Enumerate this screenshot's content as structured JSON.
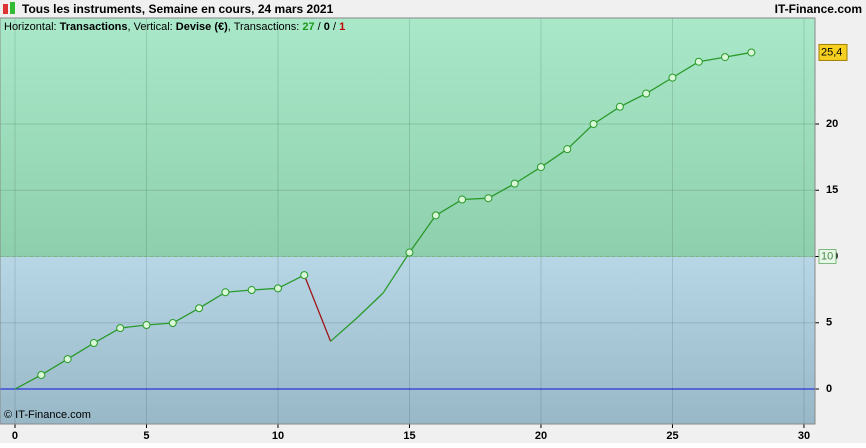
{
  "header": {
    "title": "Tous les instruments, Semaine en cours, 24 mars 2021",
    "brand": "IT-Finance.com"
  },
  "chart_data": {
    "type": "line",
    "info": [
      {
        "text": "Horizontal: "
      },
      {
        "text": "Transactions",
        "bold": true
      },
      {
        "text": ", Vertical: "
      },
      {
        "text": "Devise (€)",
        "bold": true
      },
      {
        "text": ", Transactions: "
      },
      {
        "number": 27,
        "bold": true,
        "color": "#1a9a1a"
      },
      {
        "text": " / "
      },
      {
        "number": 0,
        "bold": true
      },
      {
        "text": " / "
      },
      {
        "number": 1,
        "bold": true,
        "color": "#c00000"
      }
    ],
    "x": [
      0,
      1,
      2,
      3,
      4,
      5,
      6,
      7,
      8,
      9,
      10,
      11,
      12,
      13,
      14,
      15,
      16,
      17,
      18,
      19,
      20,
      21,
      22,
      23,
      24,
      25,
      26,
      27,
      28
    ],
    "series": [
      {
        "color": "#2a9a2a",
        "down_color": "#a01010",
        "values": [
          0,
          1.06,
          2.26,
          3.47,
          4.6,
          4.83,
          4.98,
          6.1,
          7.3,
          7.47,
          7.6,
          8.6,
          3.6,
          5.36,
          7.25,
          10.3,
          13.1,
          14.3,
          14.4,
          15.5,
          16.75,
          18.1,
          20,
          21.3,
          22.3,
          23.5,
          24.7,
          25.05,
          25.4
        ],
        "markers": [
          false,
          true,
          true,
          true,
          true,
          true,
          true,
          true,
          true,
          true,
          true,
          true,
          false,
          false,
          false,
          true,
          true,
          true,
          true,
          true,
          true,
          true,
          true,
          true,
          true,
          true,
          true,
          true,
          true
        ]
      }
    ],
    "last_value_label": "25,4",
    "threshold": 10,
    "baseline": 0,
    "xlim": [
      -0.57,
      30.42
    ],
    "ylim": [
      -2.64,
      28
    ],
    "xticks": [
      0,
      5,
      10,
      15,
      20,
      25,
      30
    ],
    "yticks": [
      0,
      5,
      10,
      15,
      20
    ],
    "grid": true,
    "footer": "© IT-Finance.com"
  }
}
